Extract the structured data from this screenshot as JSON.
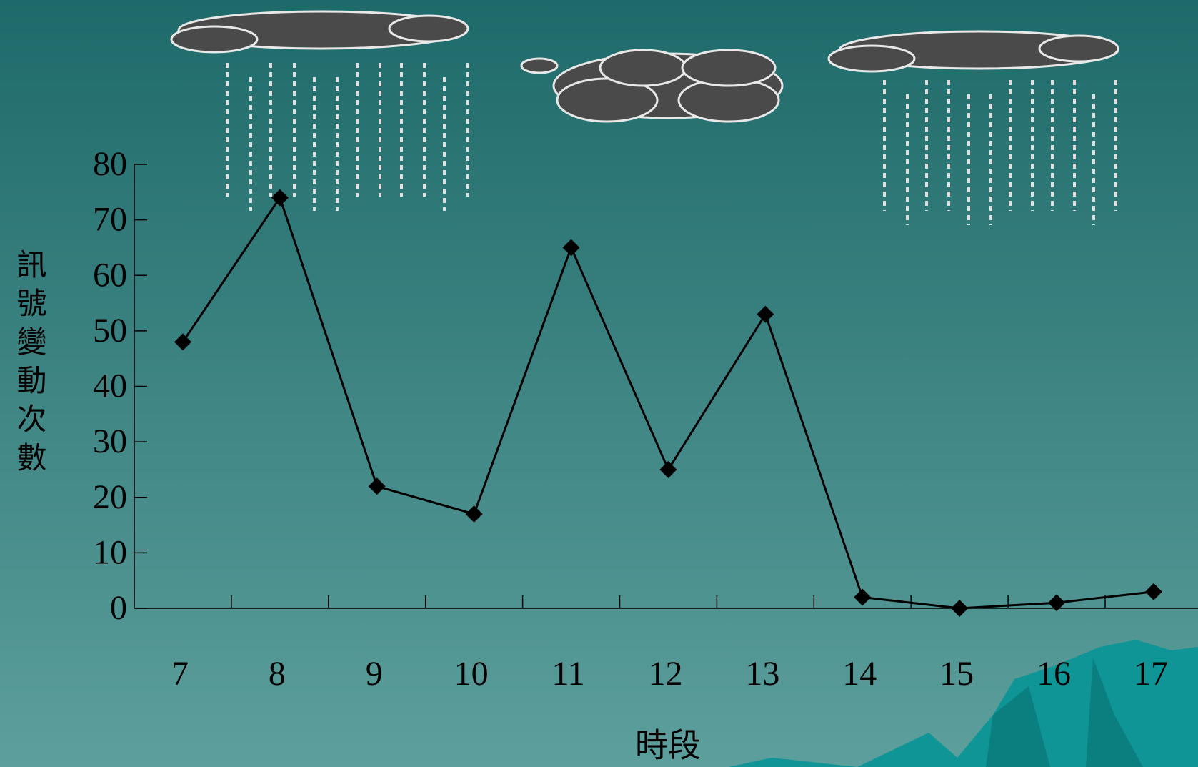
{
  "chart_data": {
    "type": "line",
    "x_label": "時段",
    "y_label": "訊號變動次數",
    "categories": [
      "7",
      "8",
      "9",
      "10",
      "11",
      "12",
      "13",
      "14",
      "15",
      "16",
      "17"
    ],
    "values": [
      48,
      74,
      22,
      17,
      65,
      25,
      53,
      2,
      0,
      1,
      3
    ],
    "color": "#000000",
    "ylim": [
      0,
      80
    ],
    "yticks": [
      0,
      10,
      20,
      30,
      40,
      50,
      60,
      70,
      80
    ]
  }
}
